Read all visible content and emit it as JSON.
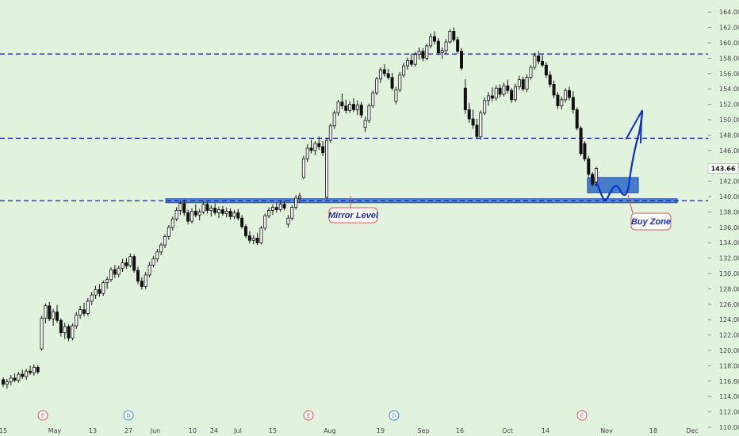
{
  "chart_data": {
    "type": "candlestick",
    "ylim": [
      109,
      165
    ],
    "y_ticks": [
      "164.00",
      "162.00",
      "160.00",
      "158.00",
      "156.00",
      "154.00",
      "152.00",
      "150.00",
      "148.00",
      "146.00",
      "144.00",
      "142.00",
      "140.00",
      "138.00",
      "136.00",
      "134.00",
      "132.00",
      "130.00",
      "128.00",
      "126.00",
      "124.00",
      "122.00",
      "120.00",
      "118.00",
      "116.00",
      "114.00",
      "112.00",
      "110.00"
    ],
    "x_ticks": [
      "15",
      "May",
      "13",
      "27",
      "Jun",
      "10",
      "24",
      "Jul",
      "15",
      "Aug",
      "19",
      "Sep",
      "16",
      "Oct",
      "14",
      "Nov",
      "18",
      "Dec"
    ],
    "grid": false,
    "levels": [
      {
        "value": 158.54,
        "label": "158.54",
        "style": "dashed",
        "color": "#1414d2"
      },
      {
        "value": 147.59,
        "label": "147.59",
        "style": "dashed",
        "color": "#1414d2"
      },
      {
        "value": 139.46,
        "label": "139.46",
        "style": "dashed",
        "color": "#1414d2"
      }
    ],
    "last_price": {
      "value": 143.66,
      "label": "143.66"
    },
    "annotations": [
      {
        "text": "Mirror Level"
      },
      {
        "text": "Buy Zone"
      }
    ],
    "events": [
      "E",
      "D",
      "E",
      "D",
      "E"
    ],
    "candles": [
      [
        116.2,
        116.5,
        115.2,
        115.6
      ],
      [
        115.6,
        116.3,
        115.0,
        115.9
      ],
      [
        115.9,
        116.8,
        115.5,
        116.4
      ],
      [
        116.4,
        117.0,
        115.9,
        116.1
      ],
      [
        116.1,
        117.2,
        115.8,
        116.9
      ],
      [
        116.9,
        117.5,
        116.3,
        116.6
      ],
      [
        116.6,
        117.6,
        116.2,
        117.3
      ],
      [
        117.3,
        118.0,
        116.8,
        117.1
      ],
      [
        117.1,
        118.2,
        116.7,
        117.8
      ],
      [
        117.8,
        118.1,
        116.9,
        117.2
      ],
      [
        120.2,
        124.5,
        120.0,
        124.2
      ],
      [
        124.2,
        126.1,
        123.5,
        125.8
      ],
      [
        125.8,
        126.3,
        123.8,
        124.1
      ],
      [
        124.1,
        125.4,
        123.2,
        125.0
      ],
      [
        125.0,
        125.9,
        123.6,
        123.9
      ],
      [
        123.9,
        124.2,
        121.8,
        122.3
      ],
      [
        122.3,
        123.6,
        121.5,
        123.1
      ],
      [
        123.1,
        123.4,
        121.2,
        121.6
      ],
      [
        121.6,
        123.5,
        121.3,
        123.2
      ],
      [
        123.2,
        125.0,
        122.8,
        124.6
      ],
      [
        124.6,
        125.8,
        124.1,
        125.3
      ],
      [
        125.3,
        126.2,
        124.4,
        124.8
      ],
      [
        124.8,
        126.8,
        124.5,
        126.4
      ],
      [
        126.4,
        127.6,
        125.9,
        127.2
      ],
      [
        127.2,
        128.4,
        126.7,
        127.9
      ],
      [
        127.9,
        128.6,
        127.0,
        127.4
      ],
      [
        127.4,
        129.1,
        127.1,
        128.8
      ],
      [
        128.8,
        129.6,
        128.0,
        129.2
      ],
      [
        129.2,
        130.8,
        128.9,
        130.5
      ],
      [
        130.5,
        131.1,
        129.4,
        129.9
      ],
      [
        129.9,
        131.0,
        129.5,
        130.7
      ],
      [
        130.7,
        131.9,
        130.2,
        131.4
      ],
      [
        131.4,
        132.0,
        130.6,
        131.0
      ],
      [
        131.0,
        132.6,
        130.8,
        132.2
      ],
      [
        132.2,
        132.5,
        130.1,
        130.4
      ],
      [
        130.4,
        130.9,
        128.6,
        129.0
      ],
      [
        129.0,
        129.5,
        127.9,
        128.3
      ],
      [
        128.3,
        130.2,
        128.0,
        129.8
      ],
      [
        129.8,
        131.5,
        129.5,
        131.1
      ],
      [
        131.1,
        132.3,
        130.8,
        131.9
      ],
      [
        131.9,
        133.2,
        131.5,
        132.8
      ],
      [
        132.8,
        134.0,
        132.4,
        133.7
      ],
      [
        133.7,
        135.1,
        133.3,
        134.8
      ],
      [
        134.8,
        136.3,
        134.4,
        136.0
      ],
      [
        136.0,
        137.4,
        135.6,
        137.1
      ],
      [
        137.1,
        138.6,
        136.8,
        138.2
      ],
      [
        138.2,
        139.5,
        137.6,
        139.1
      ],
      [
        139.1,
        139.6,
        137.5,
        137.9
      ],
      [
        137.9,
        138.3,
        136.4,
        136.8
      ],
      [
        136.8,
        138.5,
        136.5,
        138.1
      ],
      [
        138.1,
        139.0,
        137.3,
        137.6
      ],
      [
        137.6,
        138.4,
        136.9,
        138.0
      ],
      [
        138.0,
        139.4,
        137.7,
        139.0
      ],
      [
        139.0,
        139.3,
        137.8,
        138.2
      ],
      [
        138.2,
        138.9,
        137.4,
        138.5
      ],
      [
        138.5,
        139.1,
        137.6,
        137.9
      ],
      [
        137.9,
        138.7,
        137.2,
        138.3
      ],
      [
        138.3,
        138.8,
        137.5,
        137.8
      ],
      [
        137.8,
        138.6,
        137.3,
        138.1
      ],
      [
        138.1,
        138.5,
        137.0,
        137.4
      ],
      [
        137.4,
        138.3,
        137.1,
        137.9
      ],
      [
        137.9,
        138.4,
        136.9,
        137.2
      ],
      [
        137.2,
        137.6,
        135.8,
        136.1
      ],
      [
        136.1,
        136.4,
        134.6,
        134.9
      ],
      [
        134.9,
        135.5,
        133.9,
        134.3
      ],
      [
        134.3,
        135.0,
        133.8,
        134.6
      ],
      [
        134.6,
        135.3,
        133.7,
        134.0
      ],
      [
        134.0,
        136.2,
        133.8,
        135.9
      ],
      [
        135.9,
        137.8,
        135.6,
        137.5
      ],
      [
        137.5,
        138.6,
        137.2,
        138.2
      ],
      [
        138.2,
        139.0,
        137.6,
        138.6
      ],
      [
        138.6,
        139.2,
        137.9,
        138.3
      ],
      [
        138.3,
        139.4,
        138.0,
        139.0
      ],
      [
        139.0,
        139.5,
        138.2,
        138.5
      ],
      [
        136.4,
        137.6,
        136.0,
        137.2
      ],
      [
        137.2,
        138.9,
        136.9,
        138.6
      ],
      [
        138.6,
        140.2,
        138.3,
        139.8
      ],
      [
        139.8,
        140.5,
        139.2,
        140.1
      ],
      [
        142.5,
        145.3,
        142.3,
        144.9
      ],
      [
        144.9,
        146.8,
        144.5,
        146.3
      ],
      [
        146.3,
        147.4,
        145.6,
        146.0
      ],
      [
        146.0,
        147.2,
        145.4,
        146.9
      ],
      [
        146.9,
        147.8,
        146.1,
        146.5
      ],
      [
        146.5,
        147.2,
        145.3,
        145.7
      ],
      [
        139.9,
        147.6,
        139.7,
        147.3
      ],
      [
        147.3,
        149.5,
        147.0,
        149.2
      ],
      [
        149.2,
        151.2,
        148.8,
        150.9
      ],
      [
        150.9,
        152.6,
        150.5,
        152.3
      ],
      [
        152.3,
        153.4,
        151.4,
        151.8
      ],
      [
        151.8,
        152.6,
        150.8,
        151.2
      ],
      [
        151.2,
        152.4,
        150.9,
        152.0
      ],
      [
        152.0,
        152.8,
        151.0,
        151.3
      ],
      [
        151.3,
        152.5,
        150.6,
        151.9
      ],
      [
        151.9,
        152.3,
        150.2,
        150.6
      ],
      [
        149.0,
        150.4,
        148.4,
        149.9
      ],
      [
        149.9,
        152.1,
        149.6,
        151.8
      ],
      [
        151.8,
        153.8,
        151.5,
        153.5
      ],
      [
        153.5,
        155.6,
        153.2,
        155.3
      ],
      [
        155.3,
        156.8,
        154.8,
        156.5
      ],
      [
        156.5,
        157.2,
        155.6,
        156.0
      ],
      [
        156.0,
        156.6,
        155.2,
        155.5
      ],
      [
        155.5,
        156.1,
        153.8,
        154.1
      ],
      [
        152.4,
        154.3,
        152.0,
        153.9
      ],
      [
        153.9,
        156.2,
        153.6,
        155.8
      ],
      [
        155.8,
        157.4,
        155.5,
        157.0
      ],
      [
        157.0,
        158.1,
        156.5,
        157.7
      ],
      [
        157.7,
        158.6,
        156.9,
        157.2
      ],
      [
        157.2,
        158.8,
        156.9,
        158.5
      ],
      [
        158.5,
        159.4,
        157.8,
        158.9
      ],
      [
        158.9,
        159.3,
        157.6,
        158.0
      ],
      [
        158.0,
        159.9,
        157.7,
        159.6
      ],
      [
        159.6,
        161.2,
        159.3,
        160.8
      ],
      [
        160.8,
        161.5,
        159.8,
        160.2
      ],
      [
        160.2,
        160.6,
        158.4,
        158.7
      ],
      [
        158.7,
        159.4,
        157.9,
        159.0
      ],
      [
        159.0,
        160.5,
        158.6,
        160.1
      ],
      [
        160.1,
        161.8,
        159.9,
        161.5
      ],
      [
        161.5,
        162.0,
        160.1,
        160.4
      ],
      [
        160.4,
        160.8,
        158.6,
        158.9
      ],
      [
        158.9,
        159.3,
        156.4,
        156.7
      ],
      [
        154.1,
        155.3,
        150.8,
        151.3
      ],
      [
        151.3,
        152.2,
        149.6,
        150.1
      ],
      [
        150.1,
        151.3,
        148.8,
        149.3
      ],
      [
        149.3,
        150.1,
        147.5,
        147.8
      ],
      [
        147.8,
        151.2,
        147.4,
        150.9
      ],
      [
        150.9,
        152.9,
        150.6,
        152.5
      ],
      [
        152.5,
        153.6,
        151.8,
        153.1
      ],
      [
        153.1,
        154.2,
        152.4,
        152.8
      ],
      [
        152.8,
        154.5,
        152.5,
        154.1
      ],
      [
        154.1,
        154.6,
        152.9,
        153.3
      ],
      [
        153.3,
        154.8,
        153.0,
        154.4
      ],
      [
        154.4,
        155.2,
        153.4,
        153.8
      ],
      [
        153.8,
        154.1,
        152.2,
        152.6
      ],
      [
        152.6,
        154.7,
        152.3,
        154.3
      ],
      [
        154.3,
        155.7,
        153.9,
        155.2
      ],
      [
        155.2,
        155.6,
        153.7,
        154.0
      ],
      [
        154.0,
        155.9,
        153.6,
        155.5
      ],
      [
        155.5,
        157.1,
        155.2,
        156.8
      ],
      [
        156.8,
        158.7,
        156.5,
        158.3
      ],
      [
        158.3,
        158.9,
        157.2,
        157.6
      ],
      [
        157.6,
        158.4,
        156.8,
        157.1
      ],
      [
        157.1,
        157.5,
        155.4,
        155.8
      ],
      [
        155.8,
        156.3,
        154.2,
        154.6
      ],
      [
        154.6,
        155.1,
        152.8,
        153.2
      ],
      [
        153.2,
        153.6,
        151.4,
        151.8
      ],
      [
        151.8,
        153.0,
        151.3,
        152.6
      ],
      [
        152.6,
        154.1,
        152.2,
        153.8
      ],
      [
        153.8,
        154.3,
        152.5,
        152.9
      ],
      [
        152.9,
        153.7,
        150.8,
        151.3
      ],
      [
        151.3,
        151.6,
        148.6,
        148.9
      ],
      [
        148.9,
        149.2,
        145.3,
        145.6
      ],
      [
        146.9,
        147.2,
        144.6,
        144.9
      ],
      [
        144.9,
        145.3,
        142.6,
        142.9
      ],
      [
        142.9,
        143.2,
        141.3,
        141.6
      ],
      [
        141.6,
        143.9,
        141.3,
        143.66
      ]
    ]
  }
}
